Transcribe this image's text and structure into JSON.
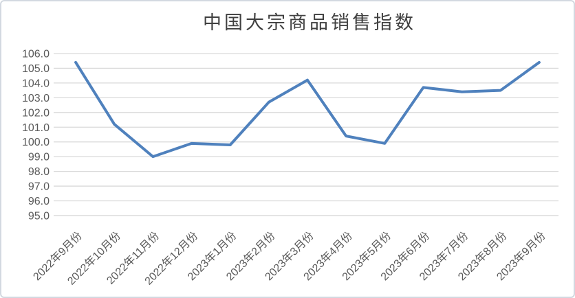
{
  "chart_data": {
    "type": "line",
    "title": "中国大宗商品销售指数",
    "categories": [
      "2022年9月份",
      "2022年10月份",
      "2022年11月份",
      "2022年12月份",
      "2023年1月份",
      "2023年2月份",
      "2023年3月份",
      "2023年4月份",
      "2023年5月份",
      "2023年6月份",
      "2023年7月份",
      "2023年8月份",
      "2023年9月份"
    ],
    "values": [
      105.4,
      101.2,
      99.0,
      99.9,
      99.8,
      102.7,
      104.2,
      100.4,
      99.9,
      103.7,
      103.4,
      103.5,
      105.4
    ],
    "xlabel": "",
    "ylabel": "",
    "ylim": [
      95.0,
      106.0
    ],
    "ytick_step": 1.0,
    "y_tick_labels": [
      "106.0",
      "105.0",
      "104.0",
      "103.0",
      "102.0",
      "101.0",
      "100.0",
      "99.0",
      "98.0",
      "97.0",
      "96.0",
      "95.0"
    ],
    "grid": true,
    "legend": "none",
    "x_label_rotation_deg": -45,
    "colors": {
      "line": "#4f81bd",
      "gridline": "#d9d9d9",
      "tick_label": "#595959",
      "title": "#404040",
      "frame_border": "#d3d9e1",
      "background": "#ffffff"
    }
  }
}
